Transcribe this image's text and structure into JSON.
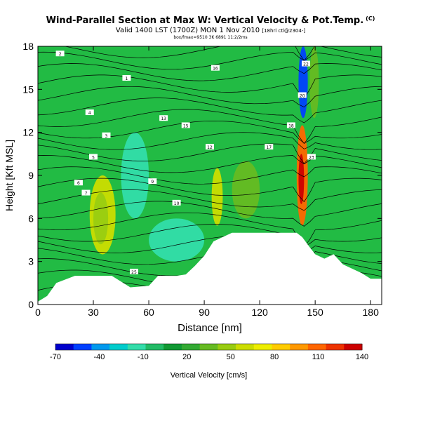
{
  "header": {
    "title": "Wind-Parallel Section at Max W: Vertical Velocity & Pot.Temp.",
    "title_tag": "(C)",
    "valid_text": "Valid 1400 LST (1700Z) MON 1 Nov 2010",
    "valid_tag": "[18hrl ctl@2304-]",
    "file_line": "box/fmax=9510 3K 6891 11:2/2ms"
  },
  "chart_data": {
    "type": "heatmap",
    "title": "Wind-Parallel Section at Max W: Vertical Velocity & Pot.Temp.",
    "xlabel": "Distance [nm]",
    "ylabel": "Height [Kft MSL]",
    "xlim": [
      0,
      186
    ],
    "ylim": [
      0,
      18
    ],
    "x_ticks": [
      "0",
      "30",
      "60",
      "90",
      "120",
      "150",
      "180"
    ],
    "y_ticks": [
      "0",
      "3",
      "6",
      "9",
      "12",
      "15",
      "18"
    ],
    "colorbar": {
      "label": "Vertical Velocity [cm/s]",
      "tick_labels": [
        "-70",
        "-40",
        "-10",
        "20",
        "50",
        "80",
        "110",
        "140"
      ],
      "min": -70,
      "max": 140,
      "colors": [
        "#0000cc",
        "#0040ff",
        "#0099ee",
        "#00cccc",
        "#33ddaa",
        "#22bb66",
        "#119933",
        "#33aa33",
        "#66bb22",
        "#99cc11",
        "#ccdd00",
        "#eeee00",
        "#ffcc00",
        "#ff9900",
        "#ff6600",
        "#ee3300",
        "#cc0000"
      ]
    },
    "terrain": [
      [
        0,
        0.2
      ],
      [
        5,
        0.6
      ],
      [
        10,
        1.5
      ],
      [
        20,
        2.0
      ],
      [
        40,
        2.0
      ],
      [
        50,
        1.2
      ],
      [
        60,
        1.3
      ],
      [
        65,
        2.0
      ],
      [
        75,
        2.0
      ],
      [
        80,
        2.1
      ],
      [
        85,
        2.7
      ],
      [
        90,
        3.4
      ],
      [
        95,
        4.4
      ],
      [
        100,
        4.7
      ],
      [
        105,
        5.0
      ],
      [
        115,
        5.0
      ],
      [
        120,
        5.0
      ],
      [
        140,
        5.0
      ],
      [
        143,
        4.7
      ],
      [
        147,
        4.0
      ],
      [
        150,
        3.5
      ],
      [
        155,
        3.2
      ],
      [
        160,
        3.5
      ],
      [
        165,
        2.8
      ],
      [
        170,
        2.5
      ],
      [
        175,
        2.2
      ],
      [
        180,
        1.8
      ],
      [
        186,
        1.8
      ]
    ],
    "velocity_cells": [
      {
        "x": [
          28,
          42
        ],
        "y": [
          3.5,
          9.0
        ],
        "w": 60
      },
      {
        "x": [
          30,
          38
        ],
        "y": [
          4.2,
          7.8
        ],
        "w": 50
      },
      {
        "x": [
          94,
          100
        ],
        "y": [
          5.5,
          9.5
        ],
        "w": 55
      },
      {
        "x": [
          105,
          120
        ],
        "y": [
          6.0,
          10.0
        ],
        "w": 30
      },
      {
        "x": [
          140,
          146
        ],
        "y": [
          5.5,
          12.5
        ],
        "w": 110
      },
      {
        "x": [
          141,
          144
        ],
        "y": [
          7.0,
          10.5
        ],
        "w": 140
      },
      {
        "x": [
          141,
          146
        ],
        "y": [
          13.0,
          18.0
        ],
        "w": -60
      },
      {
        "x": [
          147,
          152
        ],
        "y": [
          13.0,
          18.0
        ],
        "w": 40
      },
      {
        "x": [
          45,
          60
        ],
        "y": [
          6.0,
          12.0
        ],
        "w": -20
      },
      {
        "x": [
          60,
          90
        ],
        "y": [
          3.0,
          6.0
        ],
        "w": -15
      }
    ],
    "theta_contour_labels": [
      "2",
      "1",
      "4",
      "3",
      "5",
      "6",
      "7",
      "9",
      "10",
      "12",
      "13",
      "15",
      "16",
      "17",
      "18",
      "20",
      "22",
      "23",
      "25"
    ]
  }
}
